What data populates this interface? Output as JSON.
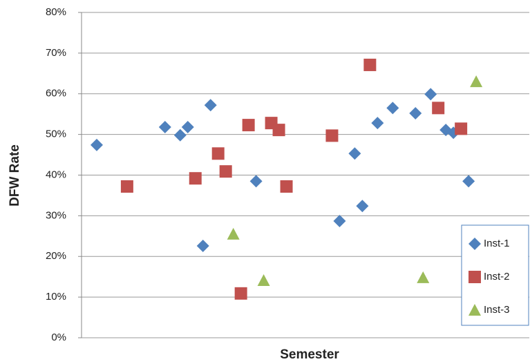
{
  "chart_data": {
    "type": "scatter",
    "x_label": "Semester",
    "y_label": "DFW Rate",
    "xlim": [
      0,
      59
    ],
    "ylim": [
      0,
      80
    ],
    "yticks": [
      {
        "value": 0,
        "label": "0%"
      },
      {
        "value": 10,
        "label": "10%"
      },
      {
        "value": 20,
        "label": "20%"
      },
      {
        "value": 30,
        "label": "30%"
      },
      {
        "value": 40,
        "label": "40%"
      },
      {
        "value": 50,
        "label": "50%"
      },
      {
        "value": 60,
        "label": "60%"
      },
      {
        "value": 70,
        "label": "70%"
      },
      {
        "value": 80,
        "label": "80%"
      }
    ],
    "grid": true,
    "legend": "lower right",
    "series": [
      {
        "name": "Inst-1",
        "color": "#4f81bd",
        "marker": "diamond",
        "x": [
          2,
          11,
          13,
          14,
          16,
          17,
          23,
          34,
          36,
          37,
          39,
          41,
          44,
          46,
          48,
          49,
          51
        ],
        "values": [
          47.4,
          51.8,
          49.8,
          51.8,
          22.6,
          57.2,
          38.5,
          28.7,
          45.3,
          32.4,
          52.8,
          56.5,
          55.2,
          59.9,
          51.1,
          50.4,
          38.5
        ]
      },
      {
        "name": "Inst-2",
        "color": "#c0504d",
        "marker": "square",
        "x": [
          6,
          15,
          18,
          19,
          21,
          22,
          25,
          26,
          27,
          33,
          38,
          47,
          50
        ],
        "values": [
          37.2,
          39.2,
          45.3,
          40.9,
          10.9,
          52.3,
          52.8,
          51.1,
          37.2,
          49.7,
          67.1,
          56.5,
          51.4
        ]
      },
      {
        "name": "Inst-3",
        "color": "#9bbb59",
        "marker": "triangle",
        "x": [
          20,
          24,
          45,
          52
        ],
        "values": [
          25.5,
          14.1,
          14.8,
          63.0
        ]
      }
    ]
  }
}
